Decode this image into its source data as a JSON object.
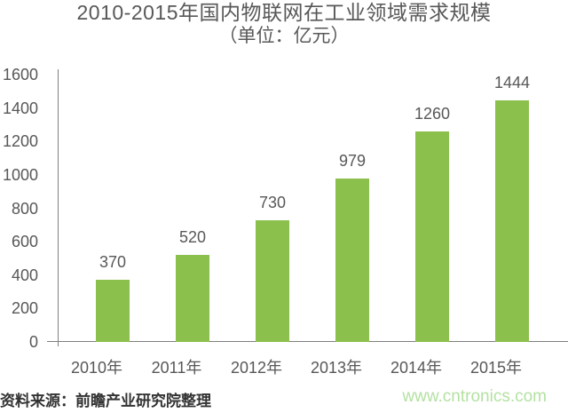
{
  "chart_data": {
    "type": "bar",
    "title": "2010-2015年国内物联网在工业领域需求规模",
    "subtitle": "（单位：亿元）",
    "unit": "亿元",
    "categories": [
      "2010年",
      "2011年",
      "2012年",
      "2013年",
      "2014年",
      "2015年"
    ],
    "values": [
      370,
      520,
      730,
      979,
      1260,
      1444
    ],
    "ylim": [
      0,
      1600
    ],
    "yticks": [
      0,
      200,
      400,
      600,
      800,
      1000,
      1200,
      1400,
      1600
    ],
    "grid": false,
    "legend": "none",
    "bar_color": "#8CC04D",
    "axis_color": "#808080",
    "text_color": "#595757"
  },
  "footer": {
    "source": "资料来源：前瞻产业研究院整理",
    "watermark": "www.cntronics.com",
    "watermark_color": "#B4E1A2"
  }
}
